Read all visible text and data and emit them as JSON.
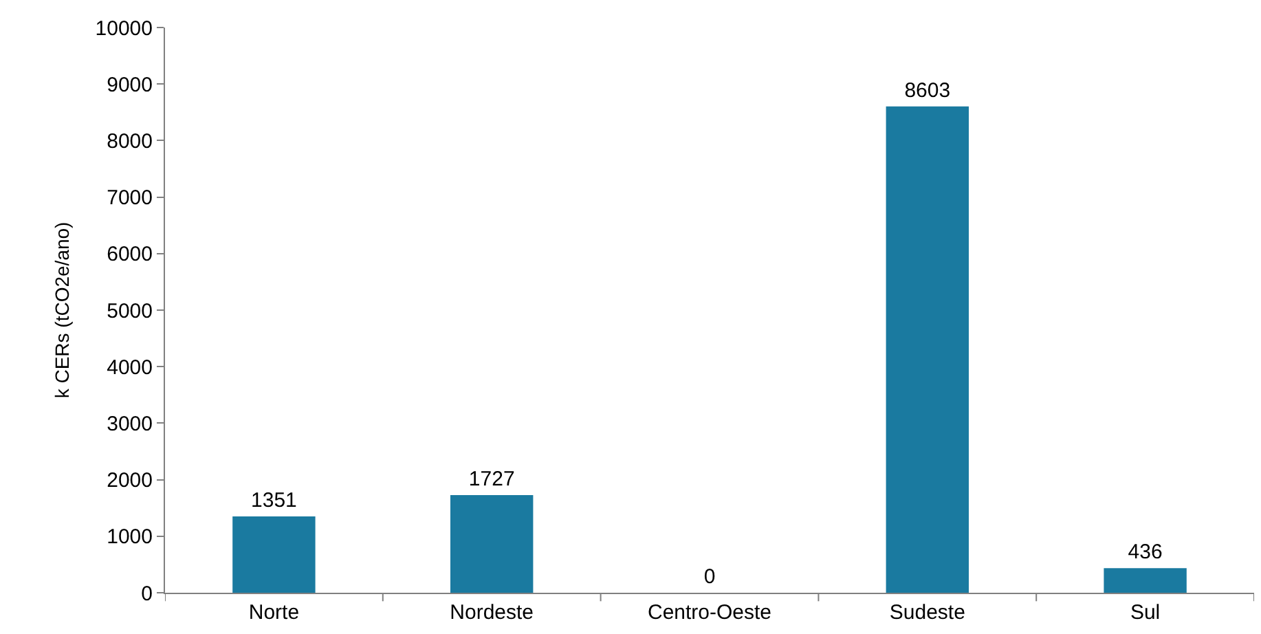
{
  "chart_data": {
    "type": "bar",
    "ylabel": "k CERs (tCO2e/ano)",
    "categories": [
      "Norte",
      "Nordeste",
      "Centro-Oeste",
      "Sudeste",
      "Sul"
    ],
    "values": [
      1351,
      1727,
      0,
      8603,
      436
    ],
    "color": "#1a7aa0",
    "ylim": [
      0,
      10000
    ],
    "yticks": [
      0,
      1000,
      2000,
      3000,
      4000,
      5000,
      6000,
      7000,
      8000,
      9000,
      10000
    ],
    "data_labels": true
  }
}
